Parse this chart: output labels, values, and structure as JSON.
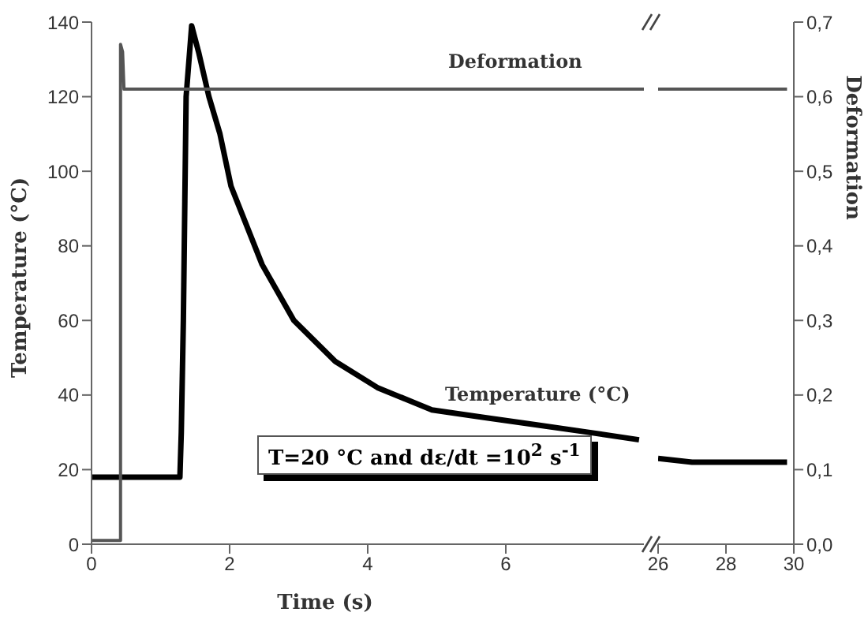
{
  "chart_data": [
    {
      "type": "line",
      "xlabel": "Time (s)",
      "ylabel": "Temperature (°C)",
      "xlim": [
        0,
        8
      ],
      "xticks": [
        0,
        2,
        4,
        6
      ],
      "ylim": [
        0,
        140
      ],
      "yticks": [
        0,
        20,
        40,
        60,
        80,
        100,
        120,
        140
      ],
      "y2lim": [
        0,
        0.7
      ],
      "line_style": "solid",
      "annotations": [
        "T=20 °C and dε/dt =10$^{2}$ s$^{-1}$"
      ],
      "series": [
        {
          "name": "Temperature (°C)",
          "color": "#000000",
          "x": [
            0,
            1.28,
            1.3,
            1.33,
            1.37,
            1.45,
            1.55,
            1.7,
            1.86,
            2.02,
            2.47,
            2.93,
            3.53,
            4.14,
            4.93,
            5.68,
            6.45,
            7.2,
            7.93
          ],
          "values": [
            18,
            18,
            30,
            60,
            120,
            139,
            132,
            120,
            110,
            96,
            75,
            60,
            49,
            42,
            36,
            34,
            32,
            30,
            28
          ]
        },
        {
          "name": "Deformation",
          "color": "#555555",
          "axis": "y2",
          "x": [
            0,
            0.35,
            0.42,
            0.42,
            0.45,
            0.47,
            8
          ],
          "values": [
            0.005,
            0.005,
            0.005,
            0.67,
            0.66,
            0.61,
            0.61
          ]
        }
      ]
    },
    {
      "type": "line",
      "xlim": [
        26,
        30
      ],
      "xticks": [
        26,
        28,
        30
      ],
      "ylim": [
        0,
        140
      ],
      "y2label": "Deformation",
      "y2lim": [
        0,
        0.7
      ],
      "y2ticks": [
        {
          "value": 0,
          "label": "0,0"
        },
        {
          "value": 0.1,
          "label": "0,1"
        },
        {
          "value": 0.2,
          "label": "0,2"
        },
        {
          "value": 0.3,
          "label": "0,3"
        },
        {
          "value": 0.4,
          "label": "0,4"
        },
        {
          "value": 0.5,
          "label": "0,5"
        },
        {
          "value": 0.6,
          "label": "0,6"
        },
        {
          "value": 0.7,
          "label": "0,7"
        }
      ],
      "line_style": "solid",
      "series": [
        {
          "color": "#000000",
          "x": [
            26,
            27,
            28,
            29,
            29.8
          ],
          "values": [
            23,
            22,
            22,
            22,
            22
          ]
        },
        {
          "color": "#555555",
          "axis": "y2",
          "x": [
            26,
            29.8
          ],
          "values": [
            0.61,
            0.61
          ]
        }
      ]
    }
  ]
}
